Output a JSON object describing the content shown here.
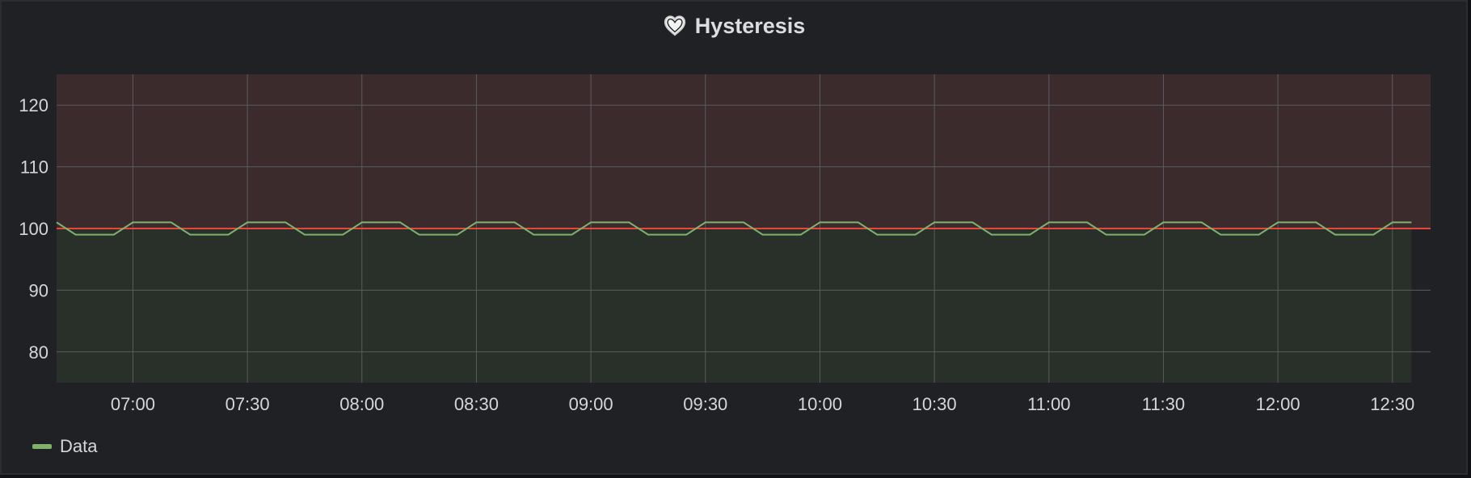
{
  "panel": {
    "title": "Hysteresis",
    "icon": "heart-icon"
  },
  "chart_data": {
    "type": "line",
    "title": "Hysteresis",
    "x_axis": {
      "type": "time",
      "range": [
        "06:40",
        "12:40"
      ],
      "ticks": [
        "07:00",
        "07:30",
        "08:00",
        "08:30",
        "09:00",
        "09:30",
        "10:00",
        "10:30",
        "11:00",
        "11:30",
        "12:00",
        "12:30"
      ]
    },
    "y_axis": {
      "range": [
        75,
        125
      ],
      "ticks": [
        80,
        90,
        100,
        110,
        120
      ]
    },
    "grid": true,
    "threshold": {
      "value": 100,
      "line_color": "#e5473b",
      "above_fill": "#3b2b2d",
      "below_fill": "#283029"
    },
    "series": [
      {
        "name": "Data",
        "color": "#7eb26d",
        "points": [
          [
            "06:40",
            101
          ],
          [
            "06:45",
            99
          ],
          [
            "06:55",
            99
          ],
          [
            "07:00",
            101
          ],
          [
            "07:10",
            101
          ],
          [
            "07:15",
            99
          ],
          [
            "07:25",
            99
          ],
          [
            "07:30",
            101
          ],
          [
            "07:40",
            101
          ],
          [
            "07:45",
            99
          ],
          [
            "07:55",
            99
          ],
          [
            "08:00",
            101
          ],
          [
            "08:10",
            101
          ],
          [
            "08:15",
            99
          ],
          [
            "08:25",
            99
          ],
          [
            "08:30",
            101
          ],
          [
            "08:40",
            101
          ],
          [
            "08:45",
            99
          ],
          [
            "08:55",
            99
          ],
          [
            "09:00",
            101
          ],
          [
            "09:10",
            101
          ],
          [
            "09:15",
            99
          ],
          [
            "09:25",
            99
          ],
          [
            "09:30",
            101
          ],
          [
            "09:40",
            101
          ],
          [
            "09:45",
            99
          ],
          [
            "09:55",
            99
          ],
          [
            "10:00",
            101
          ],
          [
            "10:10",
            101
          ],
          [
            "10:15",
            99
          ],
          [
            "10:25",
            99
          ],
          [
            "10:30",
            101
          ],
          [
            "10:40",
            101
          ],
          [
            "10:45",
            99
          ],
          [
            "10:55",
            99
          ],
          [
            "11:00",
            101
          ],
          [
            "11:10",
            101
          ],
          [
            "11:15",
            99
          ],
          [
            "11:25",
            99
          ],
          [
            "11:30",
            101
          ],
          [
            "11:40",
            101
          ],
          [
            "11:45",
            99
          ],
          [
            "11:55",
            99
          ],
          [
            "12:00",
            101
          ],
          [
            "12:10",
            101
          ],
          [
            "12:15",
            99
          ],
          [
            "12:25",
            99
          ],
          [
            "12:30",
            101
          ],
          [
            "12:35",
            101
          ]
        ]
      }
    ],
    "legend": {
      "placement": "bottom-left",
      "entries": [
        "Data"
      ]
    }
  }
}
